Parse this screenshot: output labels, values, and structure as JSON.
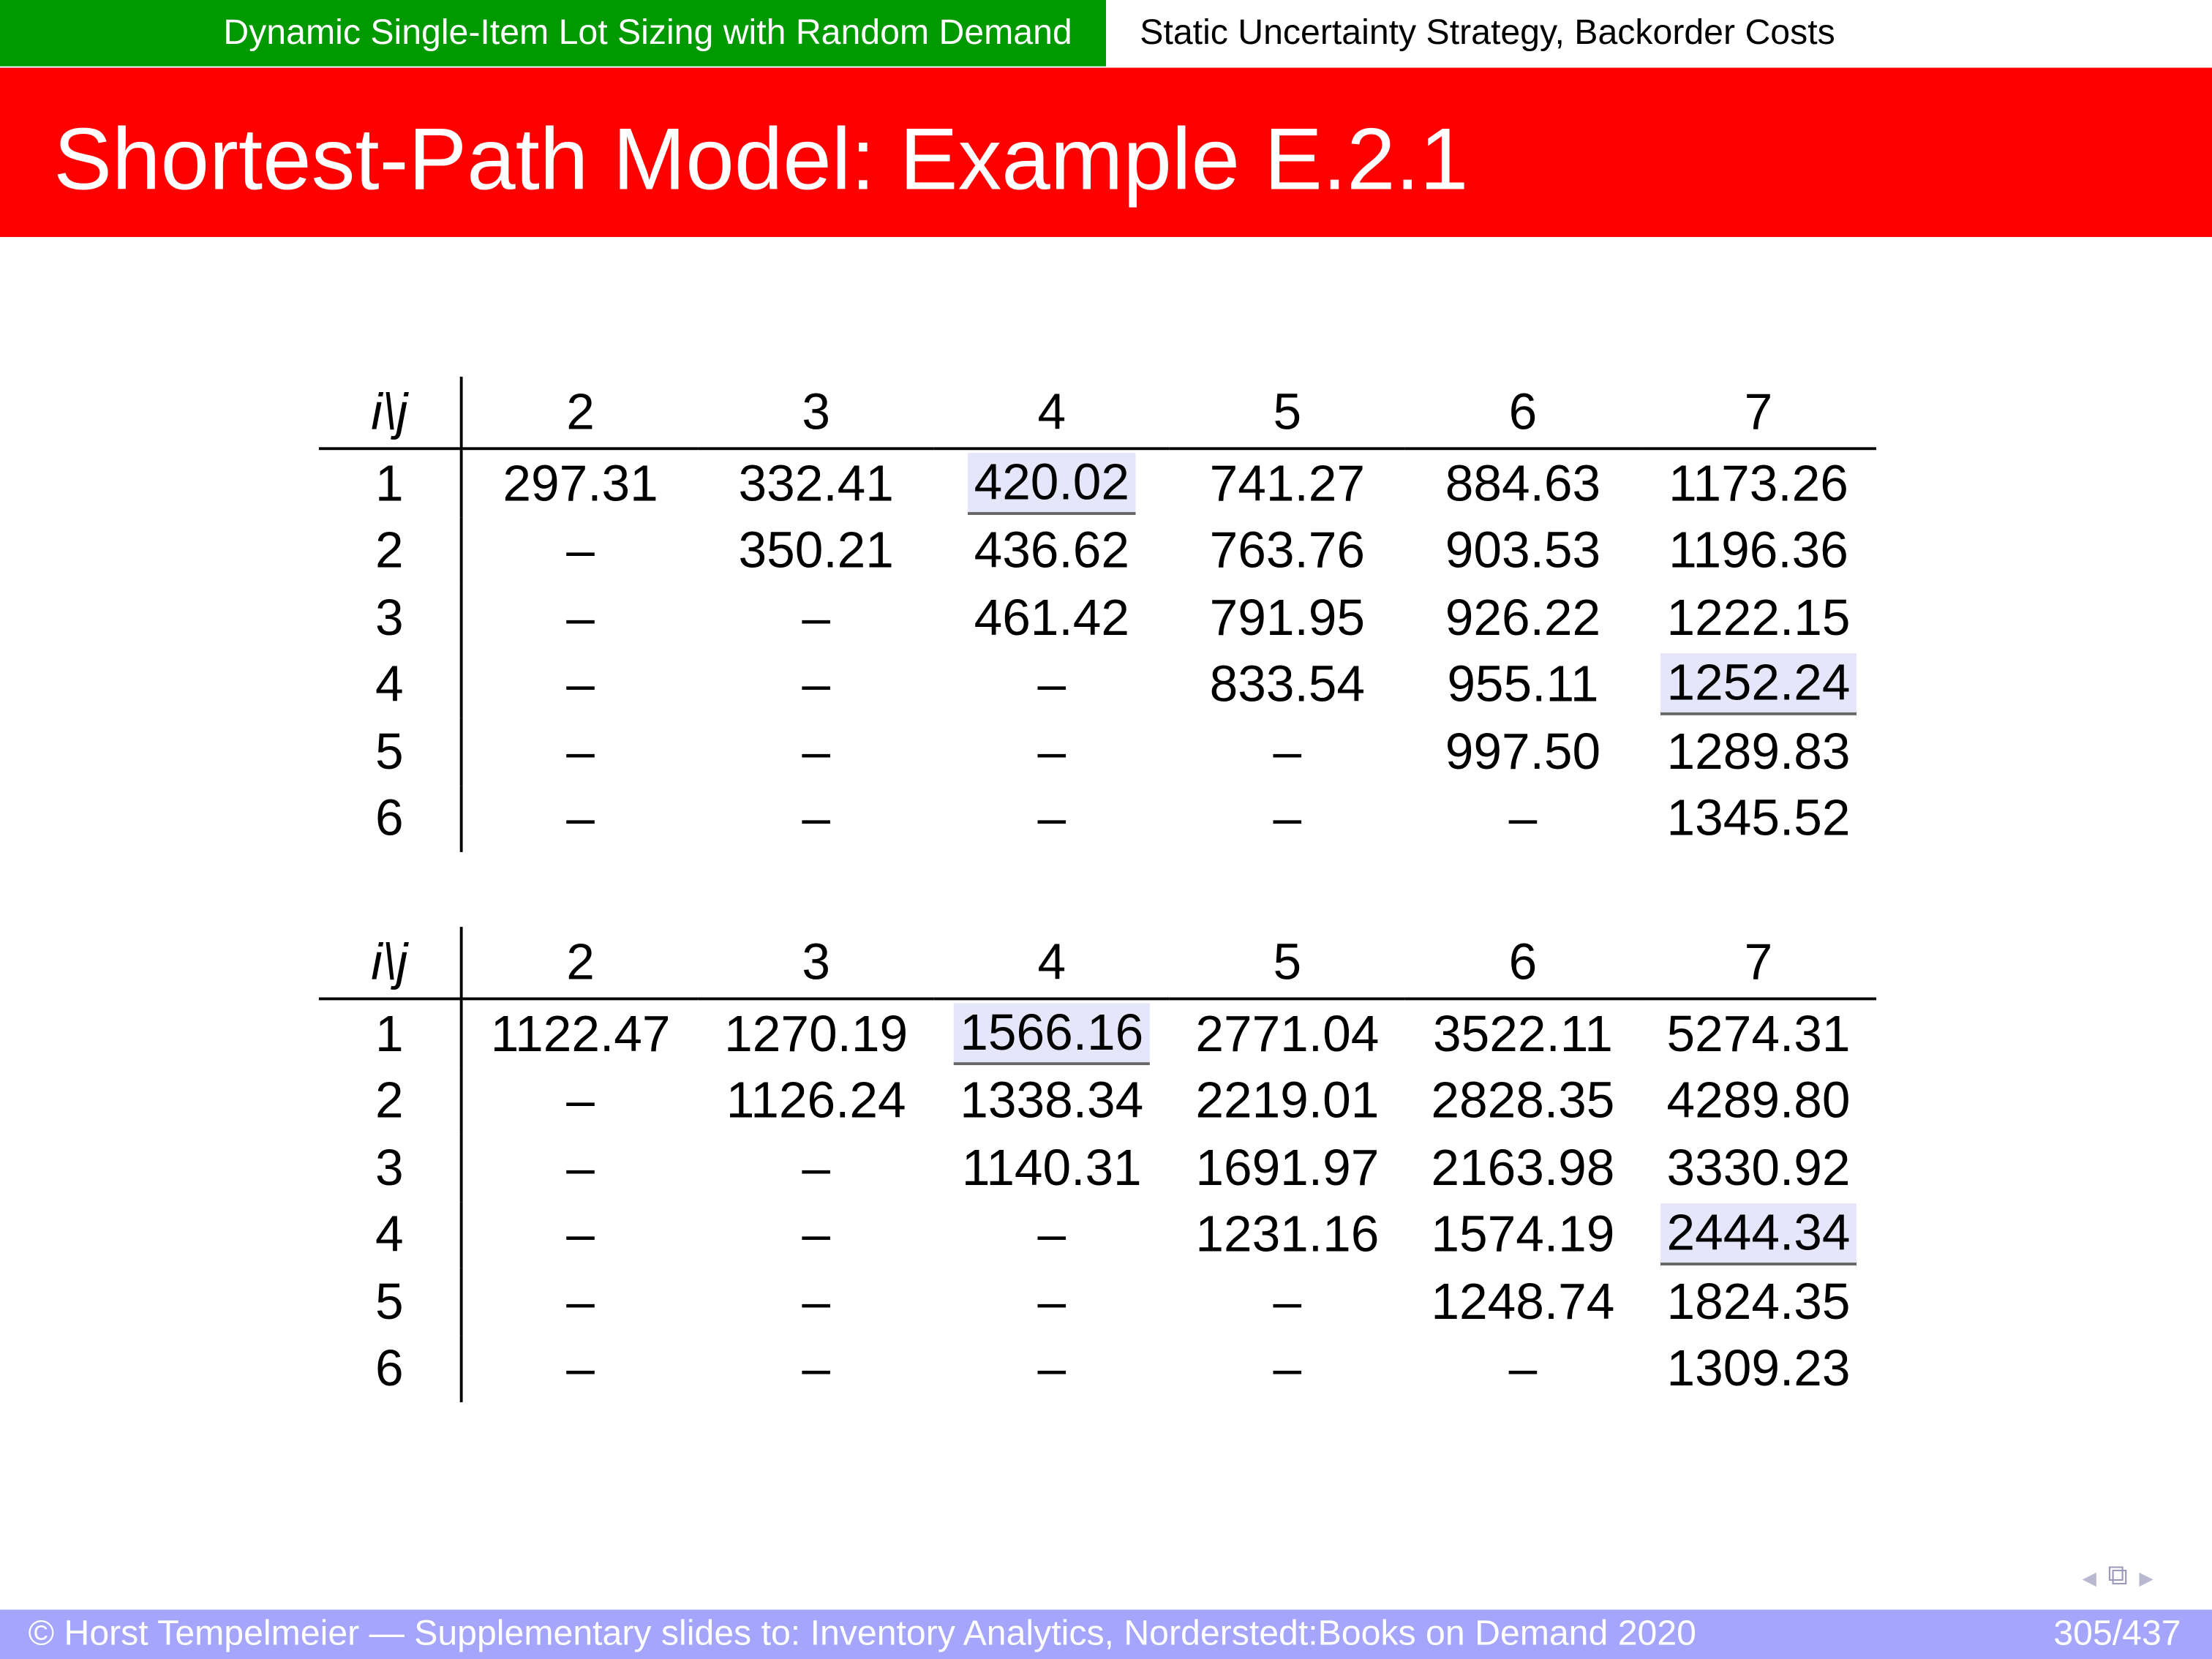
{
  "header": {
    "section": "Dynamic Single-Item Lot Sizing with Random Demand",
    "subsection": "Static Uncertainty Strategy, Backorder Costs"
  },
  "title": "Shortest-Path Model: Example E.2.1",
  "tables": [
    {
      "corner": "i\\j",
      "columns": [
        "2",
        "3",
        "4",
        "5",
        "6",
        "7"
      ],
      "rows": [
        {
          "label": "1",
          "cells": [
            "297.31",
            "332.41",
            "420.02",
            "741.27",
            "884.63",
            "1173.26"
          ],
          "highlight": [
            2
          ]
        },
        {
          "label": "2",
          "cells": [
            "–",
            "350.21",
            "436.62",
            "763.76",
            "903.53",
            "1196.36"
          ],
          "highlight": []
        },
        {
          "label": "3",
          "cells": [
            "–",
            "–",
            "461.42",
            "791.95",
            "926.22",
            "1222.15"
          ],
          "highlight": []
        },
        {
          "label": "4",
          "cells": [
            "–",
            "–",
            "–",
            "833.54",
            "955.11",
            "1252.24"
          ],
          "highlight": [
            5
          ]
        },
        {
          "label": "5",
          "cells": [
            "–",
            "–",
            "–",
            "–",
            "997.50",
            "1289.83"
          ],
          "highlight": []
        },
        {
          "label": "6",
          "cells": [
            "–",
            "–",
            "–",
            "–",
            "–",
            "1345.52"
          ],
          "highlight": []
        }
      ]
    },
    {
      "corner": "i\\j",
      "columns": [
        "2",
        "3",
        "4",
        "5",
        "6",
        "7"
      ],
      "rows": [
        {
          "label": "1",
          "cells": [
            "1122.47",
            "1270.19",
            "1566.16",
            "2771.04",
            "3522.11",
            "5274.31"
          ],
          "highlight": [
            2
          ]
        },
        {
          "label": "2",
          "cells": [
            "–",
            "1126.24",
            "1338.34",
            "2219.01",
            "2828.35",
            "4289.80"
          ],
          "highlight": []
        },
        {
          "label": "3",
          "cells": [
            "–",
            "–",
            "1140.31",
            "1691.97",
            "2163.98",
            "3330.92"
          ],
          "highlight": []
        },
        {
          "label": "4",
          "cells": [
            "–",
            "–",
            "–",
            "1231.16",
            "1574.19",
            "2444.34"
          ],
          "highlight": [
            5
          ]
        },
        {
          "label": "5",
          "cells": [
            "–",
            "–",
            "–",
            "–",
            "1248.74",
            "1824.35"
          ],
          "highlight": []
        },
        {
          "label": "6",
          "cells": [
            "–",
            "–",
            "–",
            "–",
            "–",
            "1309.23"
          ],
          "highlight": []
        }
      ]
    }
  ],
  "colors": {
    "header_green": "#009a00",
    "title_red": "#ff0000",
    "footer": "#a5a5fb",
    "highlight": "#e6e6fa"
  },
  "footer": {
    "text": "© Horst Tempelmeier — Supplementary slides to: Inventory Analytics, Norderstedt:Books on Demand 2020",
    "page": "305/437"
  },
  "nav_icons": [
    "arrow-left-icon",
    "frame-icon",
    "arrow-right-icon"
  ]
}
